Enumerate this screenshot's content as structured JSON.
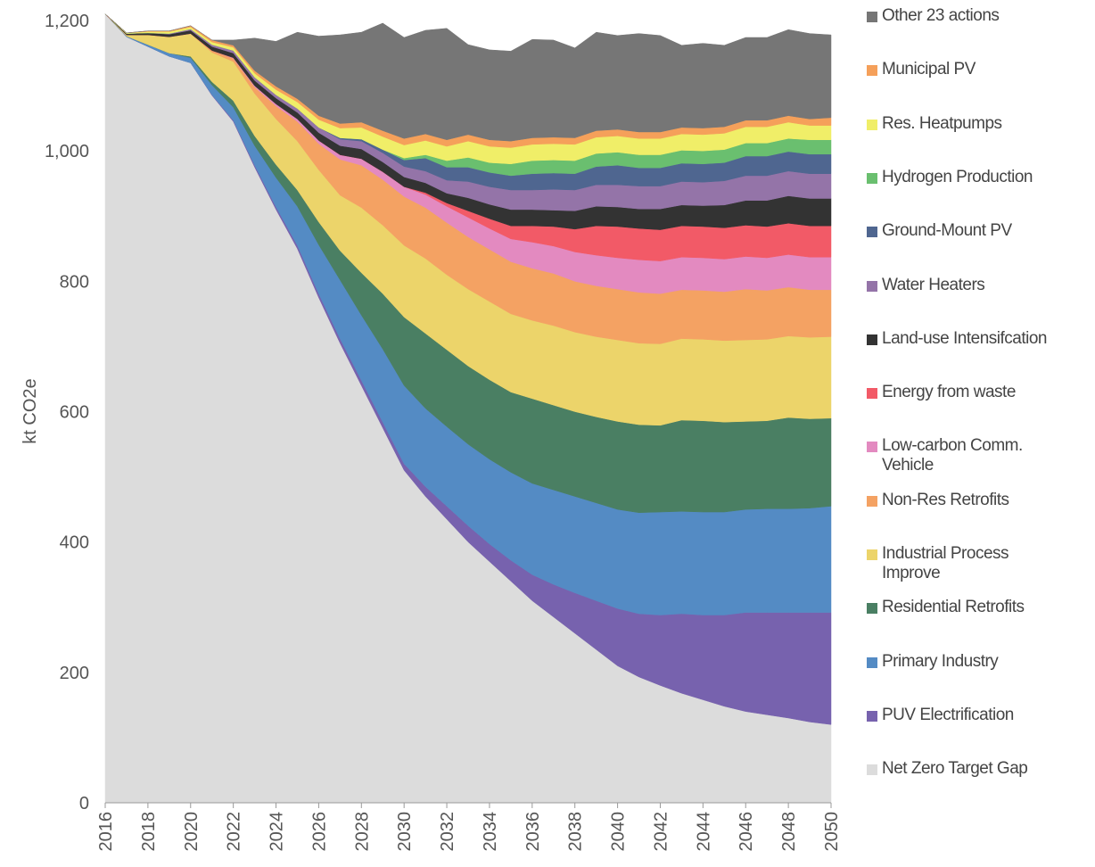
{
  "chart_data": {
    "type": "stacked-area",
    "y_label": "kt CO2e",
    "x": [
      2016,
      2017,
      2018,
      2019,
      2020,
      2021,
      2022,
      2023,
      2024,
      2025,
      2026,
      2027,
      2028,
      2029,
      2030,
      2031,
      2032,
      2033,
      2034,
      2035,
      2036,
      2037,
      2038,
      2039,
      2040,
      2041,
      2042,
      2043,
      2044,
      2045,
      2046,
      2047,
      2048,
      2049,
      2050
    ],
    "xlim": [
      2016,
      2050
    ],
    "xticks": [
      2016,
      2018,
      2020,
      2022,
      2024,
      2026,
      2028,
      2030,
      2032,
      2034,
      2036,
      2038,
      2040,
      2042,
      2044,
      2046,
      2048,
      2050
    ],
    "ylim": [
      0,
      1200
    ],
    "yticks": [
      0,
      200,
      400,
      600,
      800,
      {
        "value": 1000,
        "label": "1,000"
      },
      {
        "value": 1200,
        "label": "1,200"
      }
    ],
    "grid": false,
    "legend": "right",
    "series": [
      {
        "name": "Net Zero Target Gap",
        "color": "#dcdcdc",
        "values": [
          1210,
          1175,
          1160,
          1145,
          1135,
          1085,
          1045,
          975,
          910,
          850,
          775,
          705,
          640,
          575,
          510,
          470,
          435,
          400,
          370,
          340,
          310,
          285,
          260,
          235,
          210,
          193,
          180,
          168,
          158,
          148,
          140,
          135,
          130,
          124,
          120
        ]
      },
      {
        "name": "PUV Electrification",
        "color": "#7762ae",
        "values": [
          0,
          0,
          0,
          0,
          0,
          1,
          2,
          3,
          4,
          5,
          6,
          7,
          8,
          9,
          10,
          15,
          20,
          25,
          27,
          32,
          40,
          50,
          62,
          75,
          88,
          97,
          108,
          122,
          130,
          140,
          152,
          157,
          162,
          168,
          172
        ]
      },
      {
        "name": "Primary Industry",
        "color": "#548bc4",
        "values": [
          0,
          1,
          3,
          5,
          8,
          15,
          20,
          30,
          45,
          60,
          75,
          90,
          100,
          112,
          120,
          120,
          122,
          125,
          130,
          135,
          140,
          145,
          148,
          150,
          152,
          155,
          158,
          157,
          158,
          158,
          158,
          159,
          159,
          160,
          163
        ]
      },
      {
        "name": "Residential Retrofits",
        "color": "#4a7f63",
        "values": [
          0,
          0,
          0,
          0,
          2,
          5,
          10,
          15,
          20,
          25,
          35,
          45,
          65,
          85,
          105,
          115,
          118,
          120,
          122,
          123,
          130,
          130,
          130,
          132,
          135,
          135,
          133,
          140,
          140,
          138,
          135,
          135,
          140,
          137,
          135
        ]
      },
      {
        "name": "Industrial Process Improve",
        "color": "#ecd46a",
        "values": [
          0,
          2,
          15,
          25,
          35,
          45,
          60,
          65,
          70,
          75,
          80,
          85,
          100,
          105,
          110,
          115,
          115,
          118,
          120,
          120,
          120,
          122,
          122,
          123,
          125,
          125,
          125,
          125,
          125,
          125,
          125,
          125,
          125,
          125,
          125
        ]
      },
      {
        "name": "Non-Res Retrofits",
        "color": "#f4a263",
        "values": [
          0,
          0,
          0,
          0,
          0,
          3,
          5,
          10,
          20,
          30,
          40,
          55,
          65,
          70,
          75,
          78,
          80,
          80,
          80,
          80,
          80,
          80,
          78,
          78,
          78,
          78,
          77,
          75,
          75,
          75,
          78,
          75,
          75,
          73,
          72
        ]
      },
      {
        "name": "Low-carbon Comm. Vehicle",
        "color": "#e38ac0",
        "values": [
          0,
          0,
          0,
          0,
          0,
          0,
          1,
          2,
          3,
          4,
          5,
          7,
          10,
          12,
          15,
          20,
          25,
          30,
          32,
          35,
          40,
          42,
          45,
          47,
          48,
          50,
          50,
          50,
          50,
          50,
          50,
          50,
          50,
          50,
          50
        ]
      },
      {
        "name": "Energy from waste",
        "color": "#f25a67",
        "values": [
          0,
          0,
          0,
          0,
          0,
          0,
          0,
          0,
          0,
          0,
          0,
          0,
          0,
          0,
          0,
          3,
          5,
          10,
          15,
          20,
          25,
          30,
          35,
          45,
          48,
          48,
          48,
          48,
          48,
          48,
          48,
          48,
          48,
          48,
          48
        ]
      },
      {
        "name": "Land-use Intensifcation",
        "color": "#333333",
        "values": [
          0,
          2,
          3,
          4,
          5,
          6,
          7,
          8,
          9,
          10,
          12,
          14,
          15,
          15,
          15,
          15,
          15,
          20,
          22,
          25,
          25,
          25,
          28,
          30,
          30,
          30,
          32,
          32,
          32,
          35,
          38,
          40,
          42,
          42,
          42
        ]
      },
      {
        "name": "Water Heaters",
        "color": "#9474a8",
        "values": [
          0,
          0,
          0,
          1,
          2,
          3,
          4,
          5,
          5,
          6,
          8,
          10,
          12,
          14,
          16,
          18,
          20,
          25,
          27,
          30,
          30,
          32,
          32,
          33,
          34,
          35,
          35,
          36,
          36,
          37,
          38,
          38,
          38,
          38,
          38
        ]
      },
      {
        "name": "Ground-Mount PV",
        "color": "#4f6690",
        "values": [
          0,
          0,
          0,
          0,
          0,
          0,
          0,
          0,
          0,
          0,
          0,
          2,
          3,
          5,
          10,
          20,
          20,
          22,
          22,
          22,
          25,
          25,
          25,
          28,
          30,
          28,
          28,
          28,
          28,
          28,
          30,
          30,
          30,
          30,
          30
        ]
      },
      {
        "name": "Hydrogen Production",
        "color": "#6abf6f",
        "values": [
          0,
          0,
          0,
          0,
          0,
          0,
          0,
          0,
          0,
          0,
          0,
          0,
          0,
          0,
          3,
          5,
          10,
          15,
          15,
          18,
          20,
          20,
          20,
          20,
          20,
          20,
          20,
          20,
          20,
          20,
          20,
          20,
          20,
          22,
          22
        ]
      },
      {
        "name": "Res. Heatpumps",
        "color": "#f0ee68",
        "values": [
          0,
          1,
          2,
          3,
          3,
          4,
          5,
          6,
          8,
          10,
          12,
          15,
          18,
          20,
          20,
          22,
          22,
          25,
          25,
          25,
          25,
          25,
          25,
          25,
          25,
          25,
          25,
          25,
          25,
          25,
          25,
          25,
          25,
          22,
          22
        ]
      },
      {
        "name": "Municipal PV",
        "color": "#f5a05a",
        "values": [
          0,
          0,
          1,
          1,
          2,
          3,
          3,
          4,
          5,
          5,
          6,
          7,
          8,
          9,
          10,
          10,
          10,
          10,
          10,
          10,
          10,
          10,
          10,
          10,
          10,
          10,
          10,
          10,
          10,
          10,
          10,
          10,
          10,
          10,
          12
        ]
      },
      {
        "name": "Other 23 actions",
        "color": "#767676",
        "values": [
          0,
          0,
          0,
          0,
          0,
          0,
          8,
          50,
          69,
          102,
          122,
          136,
          138,
          165,
          155,
          159,
          171,
          138,
          138,
          138,
          151,
          149,
          138,
          151,
          144,
          151,
          148,
          126,
          130,
          125,
          127,
          127,
          132,
          131,
          127
        ]
      }
    ]
  }
}
